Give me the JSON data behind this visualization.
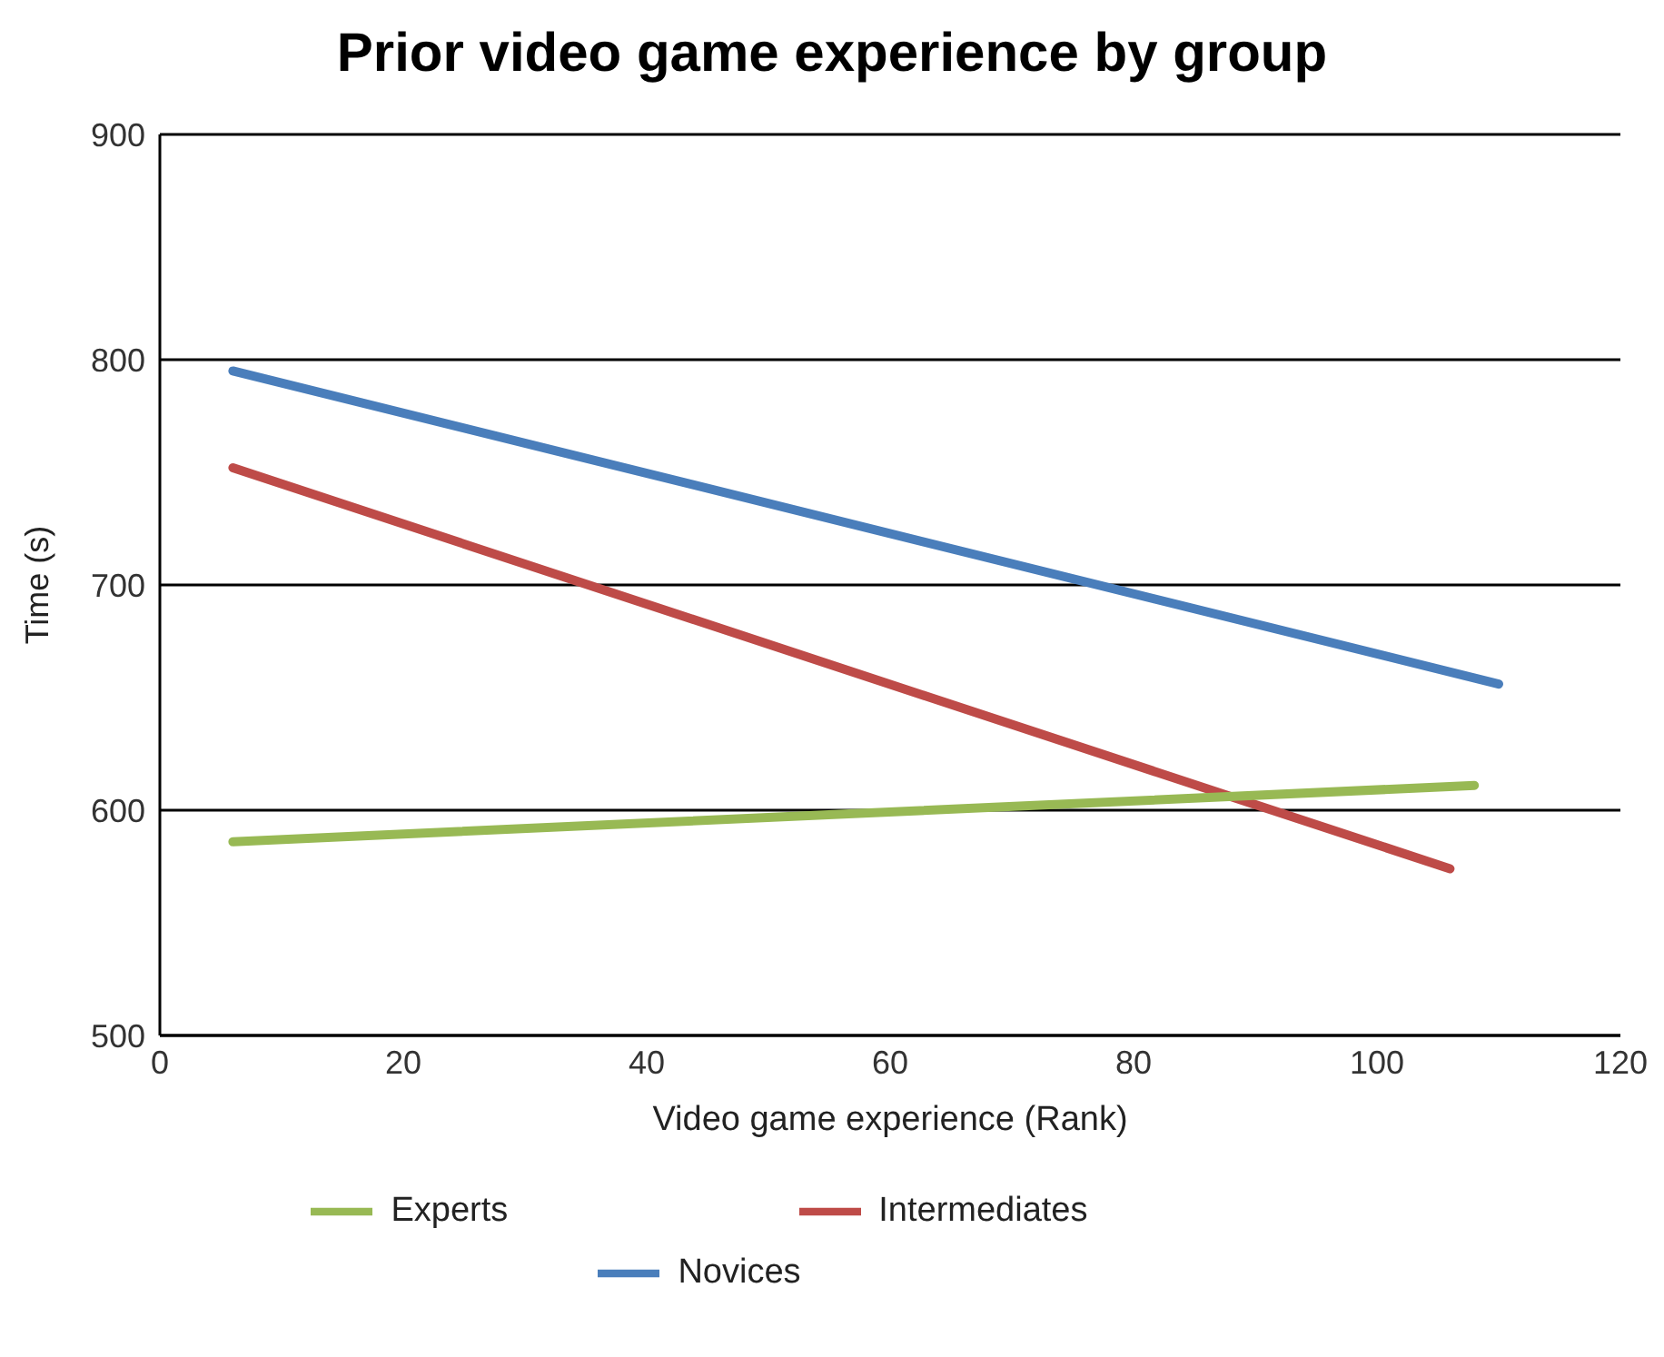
{
  "chart_data": {
    "type": "line",
    "title": "Prior video game experience by group",
    "xlabel": "Video game experience (Rank)",
    "ylabel": "Time (s)",
    "xlim": [
      0,
      120
    ],
    "xticks": [
      0,
      20,
      40,
      60,
      80,
      100,
      120
    ],
    "ylim": [
      500,
      900
    ],
    "yticks": [
      500,
      600,
      700,
      800,
      900
    ],
    "grid": "y",
    "legend": "bottom",
    "marker": "none",
    "series": [
      {
        "name": "Novices",
        "color": "#4a7ebb",
        "x": [
          6,
          110
        ],
        "values": [
          795,
          656
        ]
      },
      {
        "name": "Intermediates",
        "color": "#be4b48",
        "x": [
          6,
          106
        ],
        "values": [
          752,
          574
        ]
      },
      {
        "name": "Experts",
        "color": "#98b954",
        "x": [
          6,
          108
        ],
        "values": [
          586,
          611
        ]
      }
    ]
  }
}
